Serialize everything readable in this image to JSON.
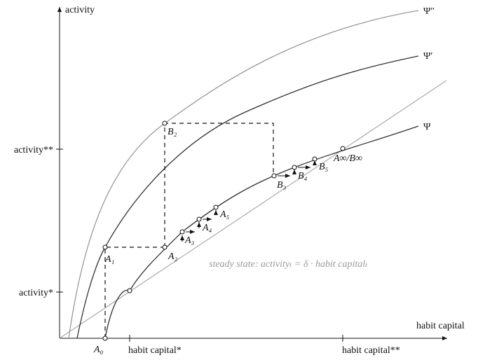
{
  "axes": {
    "y_label": "activity",
    "x_label": "habit capital"
  },
  "y_ticks": [
    "activity**",
    "activity*"
  ],
  "x_ticks": [
    "habit capital*",
    "habit capital**"
  ],
  "curves": [
    "Ψ″",
    "Ψ′",
    "Ψ"
  ],
  "points": [
    "A₀",
    "A₁",
    "A₂",
    "A₃",
    "A₄",
    "A₅",
    "B₂",
    "B₃",
    "B₄",
    "B₅",
    "A∞/B∞"
  ],
  "steady_state": "steady state: activityₜ = δ · habit capitalₜ"
}
